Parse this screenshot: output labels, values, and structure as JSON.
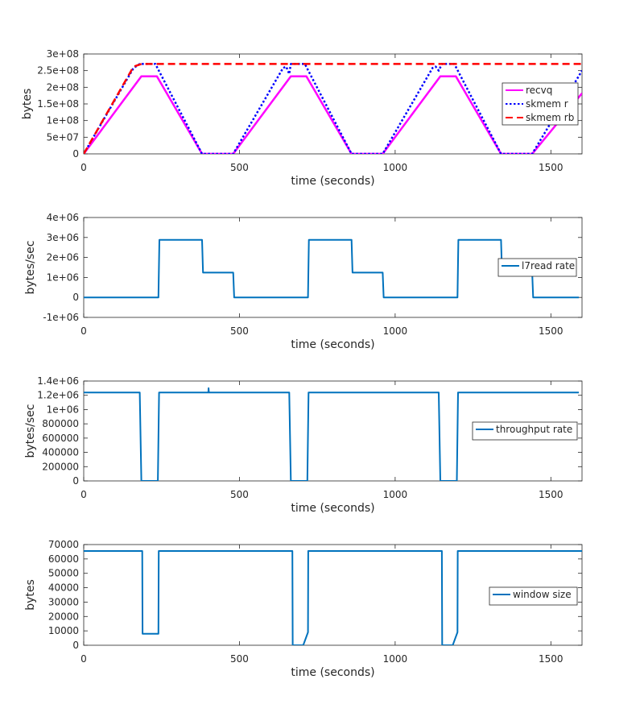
{
  "colors": {
    "recvq": "#ff00ff",
    "skmem_r": "#0000ff",
    "skmem_rb": "#ff0000",
    "blue": "#0072bd",
    "axis": "#262626",
    "background": "#ffffff"
  },
  "chart_data": [
    {
      "type": "line",
      "xlabel": "time (seconds)",
      "ylabel": "bytes",
      "xlim": [
        0,
        1600
      ],
      "ylim": [
        0,
        300000000
      ],
      "xticks": [
        0,
        500,
        1000,
        1500
      ],
      "xtick_labels": [
        "0",
        "500",
        "1000",
        "1500"
      ],
      "yticks": [
        0,
        50000000,
        100000000,
        150000000,
        200000000,
        250000000,
        300000000
      ],
      "ytick_labels": [
        "0",
        "5e+07",
        "1e+08",
        "1.5e+08",
        "2e+08",
        "2.5e+08",
        "3e+08"
      ],
      "legend_position": "right",
      "series": [
        {
          "name": "recvq",
          "style": "solid",
          "color": "#ff00ff",
          "x": [
            0,
            185,
            235,
            380,
            480,
            665,
            715,
            860,
            960,
            1145,
            1195,
            1340,
            1440,
            1600
          ],
          "y": [
            0,
            233000000,
            233000000,
            0,
            0,
            233000000,
            233000000,
            0,
            0,
            233000000,
            233000000,
            0,
            0,
            182000000
          ]
        },
        {
          "name": "skmem r",
          "style": "dotted",
          "color": "#0000ff",
          "x": [
            0,
            160,
            180,
            230,
            380,
            480,
            640,
            650,
            660,
            665,
            680,
            710,
            860,
            960,
            1120,
            1130,
            1140,
            1150,
            1190,
            1340,
            1440,
            1600
          ],
          "y": [
            0,
            258000000,
            270000000,
            270000000,
            0,
            0,
            258000000,
            262000000,
            240000000,
            270000000,
            270000000,
            270000000,
            0,
            0,
            258000000,
            262000000,
            250000000,
            270000000,
            270000000,
            0,
            0,
            250000000
          ]
        },
        {
          "name": "skmem rb",
          "style": "dashed",
          "color": "#ff0000",
          "x": [
            0,
            160,
            185,
            1600
          ],
          "y": [
            0,
            262000000,
            270000000,
            270000000
          ]
        }
      ]
    },
    {
      "type": "line",
      "xlabel": "time (seconds)",
      "ylabel": "bytes/sec",
      "xlim": [
        0,
        1600
      ],
      "ylim": [
        -1000000,
        4000000
      ],
      "xticks": [
        0,
        500,
        1000,
        1500
      ],
      "xtick_labels": [
        "0",
        "500",
        "1000",
        "1500"
      ],
      "yticks": [
        -1000000,
        0,
        1000000,
        2000000,
        3000000,
        4000000
      ],
      "ytick_labels": [
        "-1e+06",
        "0",
        "1e+06",
        "2e+06",
        "3e+06",
        "4e+06"
      ],
      "legend_position": "right",
      "series": [
        {
          "name": "l7read rate",
          "style": "solid",
          "color": "#0072bd",
          "x": [
            0,
            240,
            243,
            380,
            383,
            480,
            483,
            720,
            723,
            860,
            863,
            960,
            963,
            1200,
            1203,
            1340,
            1343,
            1440,
            1443,
            1590
          ],
          "y": [
            0,
            0,
            2880000,
            2880000,
            1240000,
            1240000,
            0,
            0,
            2880000,
            2880000,
            1240000,
            1240000,
            0,
            0,
            2880000,
            2880000,
            1240000,
            1240000,
            0,
            0
          ]
        }
      ]
    },
    {
      "type": "line",
      "xlabel": "time (seconds)",
      "ylabel": "bytes/sec",
      "xlim": [
        0,
        1600
      ],
      "ylim": [
        0,
        1400000
      ],
      "xticks": [
        0,
        500,
        1000,
        1500
      ],
      "xtick_labels": [
        "0",
        "500",
        "1000",
        "1500"
      ],
      "yticks": [
        0,
        200000,
        400000,
        600000,
        800000,
        1000000,
        1200000,
        1400000
      ],
      "ytick_labels": [
        "0",
        "200000",
        "400000",
        "600000",
        "800000",
        "1e+06",
        "1.2e+06",
        "1.4e+06"
      ],
      "legend_position": "right",
      "series": [
        {
          "name": "throughput rate",
          "style": "solid",
          "color": "#0072bd",
          "x": [
            0,
            180,
            185,
            238,
            242,
            400,
            401,
            402,
            660,
            665,
            718,
            722,
            1140,
            1145,
            1198,
            1202,
            1590
          ],
          "y": [
            1240000,
            1240000,
            0,
            0,
            1240000,
            1240000,
            1300000,
            1240000,
            1240000,
            0,
            0,
            1240000,
            1240000,
            0,
            0,
            1240000,
            1240000
          ]
        }
      ]
    },
    {
      "type": "line",
      "xlabel": "time (seconds)",
      "ylabel": "bytes",
      "xlim": [
        0,
        1600
      ],
      "ylim": [
        0,
        70000
      ],
      "xticks": [
        0,
        500,
        1000,
        1500
      ],
      "xtick_labels": [
        "0",
        "500",
        "1000",
        "1500"
      ],
      "yticks": [
        0,
        10000,
        20000,
        30000,
        40000,
        50000,
        60000,
        70000
      ],
      "ytick_labels": [
        "0",
        "10000",
        "20000",
        "30000",
        "40000",
        "50000",
        "60000",
        "70000"
      ],
      "legend_position": "right",
      "series": [
        {
          "name": "window size",
          "style": "solid",
          "color": "#0072bd",
          "x": [
            0,
            188,
            189,
            240,
            241,
            670,
            671,
            705,
            720,
            721,
            1150,
            1151,
            1185,
            1200,
            1201,
            1600
          ],
          "y": [
            65500,
            65500,
            8000,
            8000,
            65500,
            65500,
            0,
            0,
            9000,
            65500,
            65500,
            0,
            0,
            9000,
            65500,
            65500
          ]
        }
      ]
    }
  ]
}
